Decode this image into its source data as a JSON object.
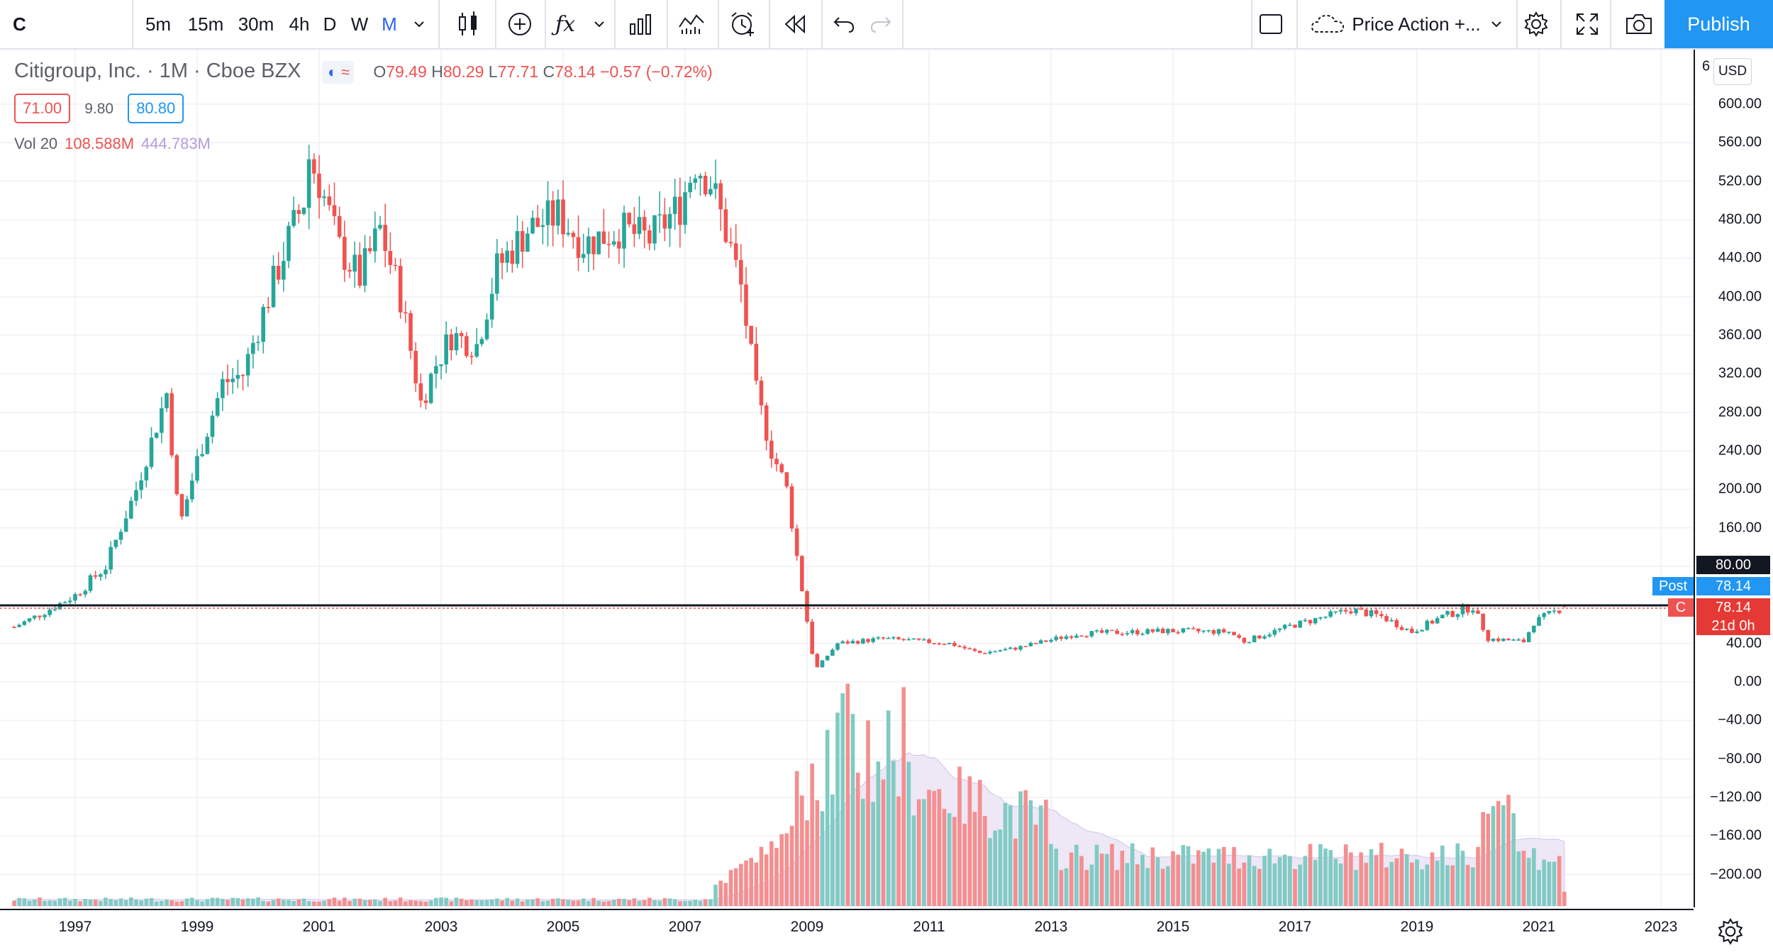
{
  "toolbar": {
    "symbol": "C",
    "intervals": [
      {
        "label": "5m",
        "active": false
      },
      {
        "label": "15m",
        "active": false
      },
      {
        "label": "30m",
        "active": false
      },
      {
        "label": "4h",
        "active": false
      },
      {
        "label": "D",
        "active": false
      },
      {
        "label": "W",
        "active": false
      },
      {
        "label": "M",
        "active": true
      }
    ],
    "layout_name": "Price Action +...",
    "publish_label": "Publish",
    "icons": [
      "chevron-down-icon",
      "candles-icon",
      "plus-circle-icon",
      "fx-icon",
      "chevron-down-icon",
      "bar-chart-icon",
      "indicator-icon",
      "alarm-icon",
      "rewind-icon",
      "undo-icon",
      "redo-icon",
      "rectangle-icon",
      "cloud-icon",
      "chevron-down-icon",
      "gear-icon",
      "fullscreen-icon",
      "camera-icon"
    ]
  },
  "legend": {
    "title": "Citigroup, Inc. · 1M · Cboe BZX",
    "o_label": "O",
    "o": "79.49",
    "h_label": "H",
    "h": "80.29",
    "l_label": "L",
    "l": "77.71",
    "c_label": "C",
    "c": "78.14",
    "change": "−0.57 (−0.72%)",
    "sell_price": "71.00",
    "spread": "9.80",
    "buy_price": "80.80",
    "volume_label": "Vol 20",
    "volume": "108.588M",
    "volume_ma": "444.783M"
  },
  "price_scale": {
    "currency": "USD",
    "top_partial": "6",
    "ticks": [
      "600.00",
      "560.00",
      "520.00",
      "480.00",
      "440.00",
      "400.00",
      "360.00",
      "320.00",
      "280.00",
      "240.00",
      "200.00",
      "160.00",
      "120.00",
      "80.00",
      "40.00",
      "0.00",
      "−40.00",
      "−80.00",
      "−120.00",
      "−160.00",
      "−200.00"
    ],
    "horizontal_line_value": "80.00",
    "post_label": "Post",
    "post_value": "78.14",
    "symbol_tag": "C",
    "close_value": "78.14",
    "countdown": "21d 0h"
  },
  "time_axis": {
    "ticks": [
      "1997",
      "1999",
      "2001",
      "2003",
      "2005",
      "2007",
      "2009",
      "2011",
      "2013",
      "2015",
      "2017",
      "2019",
      "2021",
      "2023"
    ]
  },
  "colors": {
    "up": "#26a69a",
    "down": "#ef5350",
    "volume_up": "#80cbc4",
    "volume_down": "#f48f8f",
    "volume_ma_fill": "#ede7f6",
    "accent": "#2196f3"
  },
  "chart_data": {
    "type": "candlestick",
    "title": "Citigroup, Inc. · 1M · Cboe BZX",
    "ylim": [
      -220,
      620
    ],
    "horizontal_line": 80,
    "last_close": 78.14,
    "price_path": [
      [
        "1996-01",
        57
      ],
      [
        "1996-06",
        70
      ],
      [
        "1997-01",
        90
      ],
      [
        "1997-07",
        120
      ],
      [
        "1998-01",
        200
      ],
      [
        "1998-04",
        250
      ],
      [
        "1998-07",
        300
      ],
      [
        "1998-09",
        190
      ],
      [
        "1998-10",
        170
      ],
      [
        "1999-01",
        230
      ],
      [
        "1999-06",
        310
      ],
      [
        "1999-10",
        320
      ],
      [
        "2000-03",
        400
      ],
      [
        "2000-07",
        460
      ],
      [
        "2000-10",
        500
      ],
      [
        "2000-11",
        545
      ],
      [
        "2001-01",
        520
      ],
      [
        "2001-05",
        450
      ],
      [
        "2001-09",
        420
      ],
      [
        "2002-01",
        470
      ],
      [
        "2002-05",
        400
      ],
      [
        "2002-09",
        290
      ],
      [
        "2002-12",
        330
      ],
      [
        "2003-03",
        360
      ],
      [
        "2003-08",
        350
      ],
      [
        "2003-12",
        430
      ],
      [
        "2004-06",
        470
      ],
      [
        "2004-12",
        485
      ],
      [
        "2005-05",
        455
      ],
      [
        "2005-12",
        470
      ],
      [
        "2006-06",
        460
      ],
      [
        "2006-12",
        495
      ],
      [
        "2007-03",
        540
      ],
      [
        "2007-06",
        520
      ],
      [
        "2007-10",
        450
      ],
      [
        "2007-12",
        410
      ],
      [
        "2008-03",
        300
      ],
      [
        "2008-06",
        240
      ],
      [
        "2008-09",
        200
      ],
      [
        "2008-11",
        130
      ],
      [
        "2009-02",
        30
      ],
      [
        "2009-03",
        15
      ],
      [
        "2009-07",
        40
      ],
      [
        "2010-04",
        45
      ],
      [
        "2011-05",
        40
      ],
      [
        "2011-11",
        30
      ],
      [
        "2012-06",
        35
      ],
      [
        "2013-06",
        50
      ],
      [
        "2014-12",
        53
      ],
      [
        "2015-12",
        52
      ],
      [
        "2016-03",
        42
      ],
      [
        "2016-12",
        58
      ],
      [
        "2017-12",
        75
      ],
      [
        "2018-06",
        68
      ],
      [
        "2018-12",
        52
      ],
      [
        "2019-06",
        68
      ],
      [
        "2019-12",
        78
      ],
      [
        "2020-03",
        45
      ],
      [
        "2020-10",
        42
      ],
      [
        "2020-12",
        62
      ],
      [
        "2021-06",
        78.14
      ]
    ],
    "volume_series": "monthly volume bars, small before 2008, peak in 2009, declining through 2021"
  }
}
